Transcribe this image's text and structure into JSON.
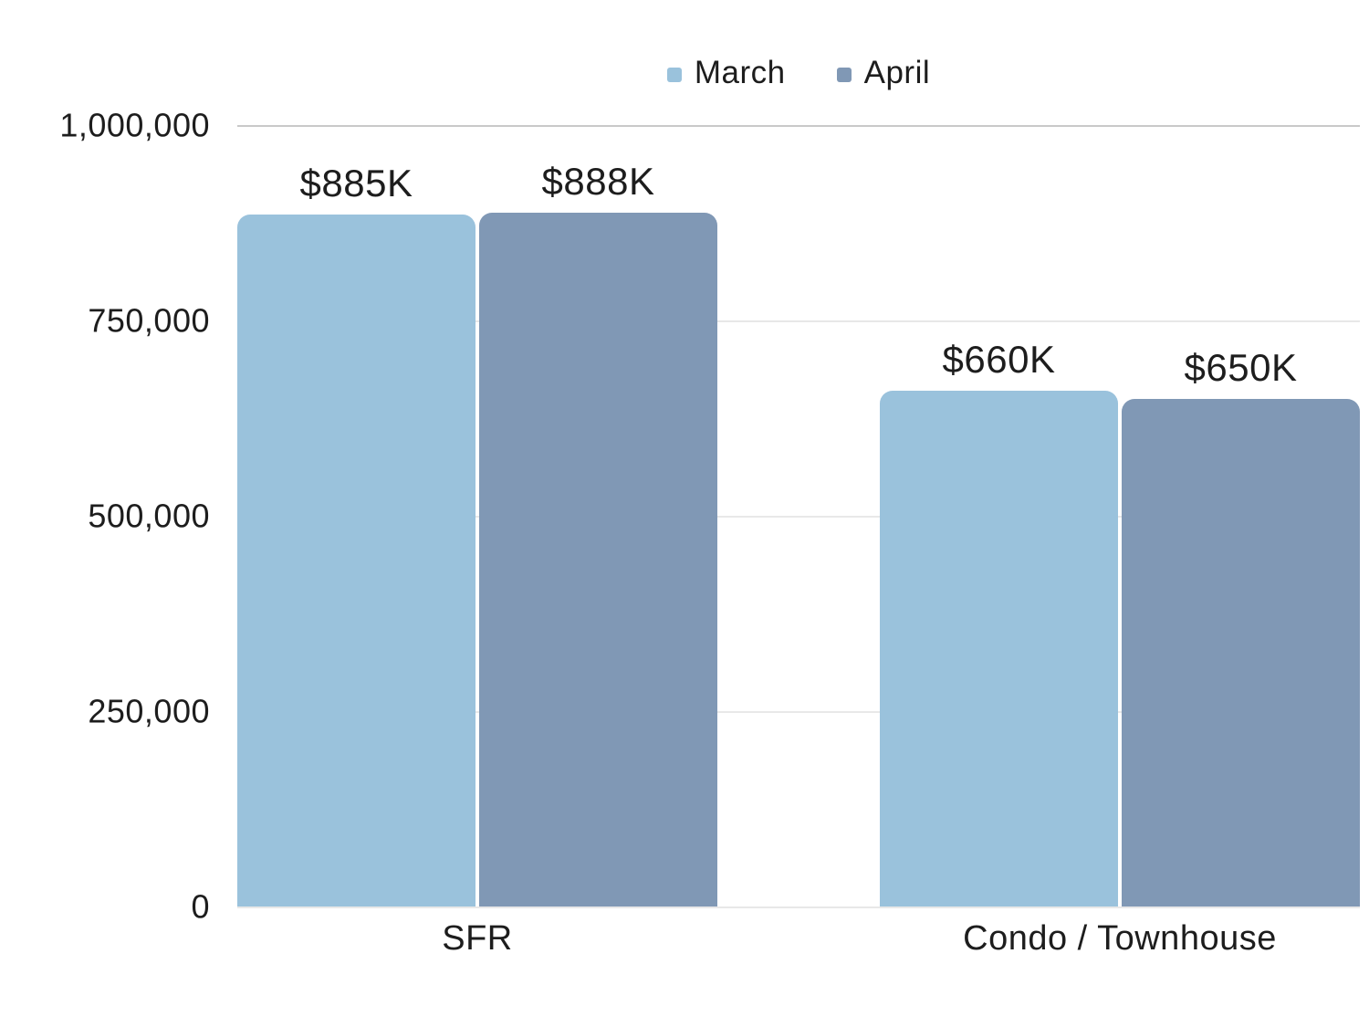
{
  "app": {
    "background": "#ffffff",
    "text_color": "#1d1d1d"
  },
  "chart_data": {
    "type": "bar",
    "title": "",
    "categories": [
      "SFR",
      "Condo / Townhouse"
    ],
    "series": [
      {
        "name": "March",
        "color": "#9ac2dc",
        "values": [
          885000,
          660000
        ],
        "data_labels": [
          "$885K",
          "$660K"
        ]
      },
      {
        "name": "April",
        "color": "#8098b5",
        "values": [
          888000,
          650000
        ],
        "data_labels": [
          "$888K",
          "$650K"
        ]
      }
    ],
    "xlabel": "",
    "ylabel": "",
    "ylim": [
      0,
      1000000
    ],
    "yticks": [
      0,
      250000,
      500000,
      750000,
      1000000
    ],
    "ytick_labels": [
      "0",
      "250,000",
      "500,000",
      "750,000",
      "1,000,000"
    ],
    "grid": "horizontal",
    "grid_color": "#e8e8e8",
    "grid_color_top": "#c9c9c9",
    "legend_position": "top"
  }
}
